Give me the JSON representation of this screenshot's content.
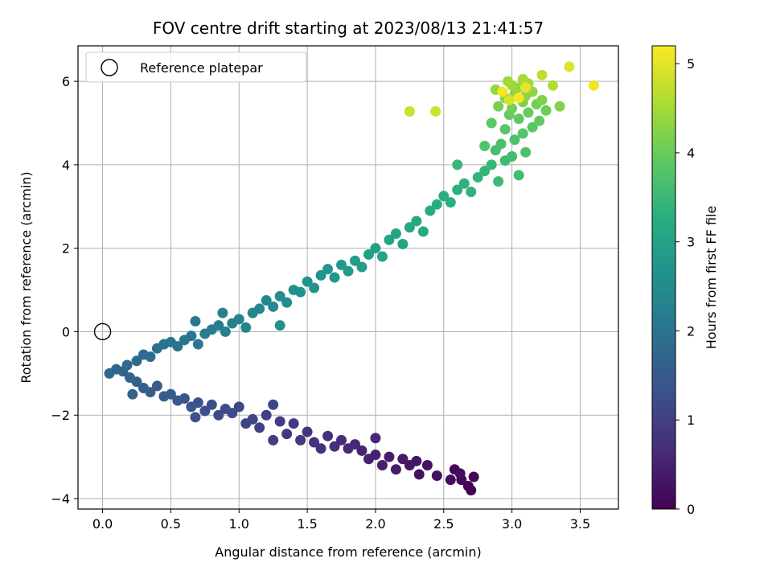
{
  "chart_data": {
    "type": "scatter",
    "title": "FOV centre drift starting at 2023/08/13 21:41:57",
    "xlabel": "Angular distance from reference (arcmin)",
    "ylabel": "Rotation from reference (arcmin)",
    "xlim": [
      -0.18,
      3.78
    ],
    "ylim": [
      -4.25,
      6.85
    ],
    "xticks": [
      0.0,
      0.5,
      1.0,
      1.5,
      2.0,
      2.5,
      3.0,
      3.5
    ],
    "xtick_labels": [
      "0.0",
      "0.5",
      "1.0",
      "1.5",
      "2.0",
      "2.5",
      "3.0",
      "3.5"
    ],
    "yticks": [
      -4,
      -2,
      0,
      2,
      4,
      6
    ],
    "ytick_labels": [
      "−4",
      "−2",
      "0",
      "2",
      "4",
      "6"
    ],
    "grid": true,
    "legend": {
      "position": "top-left",
      "entries": [
        "Reference platepar"
      ]
    },
    "colorbar": {
      "label": "Hours from first FF file",
      "colormap": "viridis",
      "range": [
        0,
        5.2
      ],
      "ticks": [
        0,
        1,
        2,
        3,
        4,
        5
      ],
      "tick_labels": [
        "0",
        "1",
        "2",
        "3",
        "4",
        "5"
      ]
    },
    "reference_point": {
      "x": 0.0,
      "y": 0.0,
      "style": "hollow circle"
    },
    "series": [
      {
        "color_by": "hours",
        "points": [
          {
            "x": 2.7,
            "y": -3.8,
            "h": 0.0
          },
          {
            "x": 2.68,
            "y": -3.7,
            "h": 0.03
          },
          {
            "x": 2.72,
            "y": -3.48,
            "h": 0.06
          },
          {
            "x": 2.63,
            "y": -3.55,
            "h": 0.09
          },
          {
            "x": 2.58,
            "y": -3.3,
            "h": 0.12
          },
          {
            "x": 2.55,
            "y": -3.55,
            "h": 0.15
          },
          {
            "x": 2.62,
            "y": -3.4,
            "h": 0.18
          },
          {
            "x": 2.45,
            "y": -3.45,
            "h": 0.21
          },
          {
            "x": 2.38,
            "y": -3.2,
            "h": 0.24
          },
          {
            "x": 2.32,
            "y": -3.42,
            "h": 0.27
          },
          {
            "x": 2.3,
            "y": -3.1,
            "h": 0.3
          },
          {
            "x": 2.25,
            "y": -3.2,
            "h": 0.33
          },
          {
            "x": 2.2,
            "y": -3.05,
            "h": 0.36
          },
          {
            "x": 2.15,
            "y": -3.3,
            "h": 0.39
          },
          {
            "x": 2.1,
            "y": -3.0,
            "h": 0.42
          },
          {
            "x": 2.05,
            "y": -3.2,
            "h": 0.45
          },
          {
            "x": 2.0,
            "y": -2.95,
            "h": 0.48
          },
          {
            "x": 1.95,
            "y": -3.05,
            "h": 0.51
          },
          {
            "x": 1.9,
            "y": -2.85,
            "h": 0.54
          },
          {
            "x": 2.0,
            "y": -2.55,
            "h": 0.57
          },
          {
            "x": 1.85,
            "y": -2.7,
            "h": 0.6
          },
          {
            "x": 1.8,
            "y": -2.8,
            "h": 0.63
          },
          {
            "x": 1.75,
            "y": -2.6,
            "h": 0.66
          },
          {
            "x": 1.7,
            "y": -2.75,
            "h": 0.69
          },
          {
            "x": 1.65,
            "y": -2.5,
            "h": 0.72
          },
          {
            "x": 1.6,
            "y": -2.8,
            "h": 0.75
          },
          {
            "x": 1.55,
            "y": -2.65,
            "h": 0.78
          },
          {
            "x": 1.5,
            "y": -2.4,
            "h": 0.81
          },
          {
            "x": 1.45,
            "y": -2.6,
            "h": 0.84
          },
          {
            "x": 1.4,
            "y": -2.2,
            "h": 0.87
          },
          {
            "x": 1.35,
            "y": -2.45,
            "h": 0.9
          },
          {
            "x": 1.3,
            "y": -2.15,
            "h": 0.93
          },
          {
            "x": 1.25,
            "y": -2.6,
            "h": 0.96
          },
          {
            "x": 1.2,
            "y": -2.0,
            "h": 0.99
          },
          {
            "x": 1.15,
            "y": -2.3,
            "h": 1.02
          },
          {
            "x": 1.1,
            "y": -2.1,
            "h": 1.05
          },
          {
            "x": 1.05,
            "y": -2.2,
            "h": 1.08
          },
          {
            "x": 1.25,
            "y": -1.75,
            "h": 1.11
          },
          {
            "x": 1.0,
            "y": -1.8,
            "h": 1.14
          },
          {
            "x": 0.95,
            "y": -1.95,
            "h": 1.17
          },
          {
            "x": 0.9,
            "y": -1.85,
            "h": 1.2
          },
          {
            "x": 0.85,
            "y": -2.0,
            "h": 1.23
          },
          {
            "x": 0.8,
            "y": -1.75,
            "h": 1.26
          },
          {
            "x": 0.75,
            "y": -1.9,
            "h": 1.29
          },
          {
            "x": 0.7,
            "y": -1.7,
            "h": 1.32
          },
          {
            "x": 0.68,
            "y": -2.05,
            "h": 1.35
          },
          {
            "x": 0.65,
            "y": -1.8,
            "h": 1.38
          },
          {
            "x": 0.6,
            "y": -1.6,
            "h": 1.41
          },
          {
            "x": 0.55,
            "y": -1.65,
            "h": 1.44
          },
          {
            "x": 0.5,
            "y": -1.5,
            "h": 1.47
          },
          {
            "x": 0.45,
            "y": -1.55,
            "h": 1.5
          },
          {
            "x": 0.4,
            "y": -1.3,
            "h": 1.53
          },
          {
            "x": 0.35,
            "y": -1.45,
            "h": 1.56
          },
          {
            "x": 0.3,
            "y": -1.35,
            "h": 1.59
          },
          {
            "x": 0.25,
            "y": -1.2,
            "h": 1.62
          },
          {
            "x": 0.22,
            "y": -1.5,
            "h": 1.65
          },
          {
            "x": 0.2,
            "y": -1.1,
            "h": 1.68
          },
          {
            "x": 0.15,
            "y": -0.95,
            "h": 1.71
          },
          {
            "x": 0.1,
            "y": -0.9,
            "h": 1.74
          },
          {
            "x": 0.05,
            "y": -1.0,
            "h": 1.77
          },
          {
            "x": 0.18,
            "y": -0.8,
            "h": 1.8
          },
          {
            "x": 0.25,
            "y": -0.7,
            "h": 1.83
          },
          {
            "x": 0.3,
            "y": -0.55,
            "h": 1.86
          },
          {
            "x": 0.35,
            "y": -0.6,
            "h": 1.89
          },
          {
            "x": 0.4,
            "y": -0.4,
            "h": 1.92
          },
          {
            "x": 0.45,
            "y": -0.3,
            "h": 1.95
          },
          {
            "x": 0.5,
            "y": -0.25,
            "h": 1.98
          },
          {
            "x": 0.55,
            "y": -0.35,
            "h": 2.0
          },
          {
            "x": 0.6,
            "y": -0.2,
            "h": 2.03
          },
          {
            "x": 0.65,
            "y": -0.1,
            "h": 2.06
          },
          {
            "x": 0.68,
            "y": 0.25,
            "h": 2.09
          },
          {
            "x": 0.7,
            "y": -0.3,
            "h": 2.12
          },
          {
            "x": 0.75,
            "y": -0.05,
            "h": 2.15
          },
          {
            "x": 0.8,
            "y": 0.05,
            "h": 2.18
          },
          {
            "x": 0.85,
            "y": 0.15,
            "h": 2.21
          },
          {
            "x": 0.9,
            "y": 0.0,
            "h": 2.24
          },
          {
            "x": 0.95,
            "y": 0.2,
            "h": 2.27
          },
          {
            "x": 0.88,
            "y": 0.45,
            "h": 2.3
          },
          {
            "x": 1.0,
            "y": 0.3,
            "h": 2.33
          },
          {
            "x": 1.05,
            "y": 0.1,
            "h": 2.36
          },
          {
            "x": 1.1,
            "y": 0.45,
            "h": 2.39
          },
          {
            "x": 1.15,
            "y": 0.55,
            "h": 2.42
          },
          {
            "x": 1.2,
            "y": 0.75,
            "h": 2.45
          },
          {
            "x": 1.25,
            "y": 0.6,
            "h": 2.48
          },
          {
            "x": 1.3,
            "y": 0.85,
            "h": 2.51
          },
          {
            "x": 1.35,
            "y": 0.7,
            "h": 2.54
          },
          {
            "x": 1.4,
            "y": 1.0,
            "h": 2.57
          },
          {
            "x": 1.3,
            "y": 0.15,
            "h": 2.6
          },
          {
            "x": 1.45,
            "y": 0.95,
            "h": 2.63
          },
          {
            "x": 1.5,
            "y": 1.2,
            "h": 2.66
          },
          {
            "x": 1.55,
            "y": 1.05,
            "h": 2.69
          },
          {
            "x": 1.6,
            "y": 1.35,
            "h": 2.72
          },
          {
            "x": 1.65,
            "y": 1.5,
            "h": 2.75
          },
          {
            "x": 1.7,
            "y": 1.3,
            "h": 2.78
          },
          {
            "x": 1.75,
            "y": 1.6,
            "h": 2.81
          },
          {
            "x": 1.8,
            "y": 1.45,
            "h": 2.84
          },
          {
            "x": 1.85,
            "y": 1.7,
            "h": 2.87
          },
          {
            "x": 1.9,
            "y": 1.55,
            "h": 2.9
          },
          {
            "x": 1.95,
            "y": 1.85,
            "h": 2.93
          },
          {
            "x": 2.0,
            "y": 2.0,
            "h": 2.96
          },
          {
            "x": 2.05,
            "y": 1.8,
            "h": 2.99
          },
          {
            "x": 2.1,
            "y": 2.2,
            "h": 3.02
          },
          {
            "x": 2.15,
            "y": 2.35,
            "h": 3.05
          },
          {
            "x": 2.2,
            "y": 2.1,
            "h": 3.08
          },
          {
            "x": 2.25,
            "y": 2.5,
            "h": 3.11
          },
          {
            "x": 2.3,
            "y": 2.65,
            "h": 3.14
          },
          {
            "x": 2.35,
            "y": 2.4,
            "h": 3.17
          },
          {
            "x": 2.4,
            "y": 2.9,
            "h": 3.2
          },
          {
            "x": 2.45,
            "y": 3.05,
            "h": 3.23
          },
          {
            "x": 2.5,
            "y": 3.25,
            "h": 3.26
          },
          {
            "x": 2.55,
            "y": 3.1,
            "h": 3.29
          },
          {
            "x": 2.6,
            "y": 3.4,
            "h": 3.32
          },
          {
            "x": 2.65,
            "y": 3.55,
            "h": 3.35
          },
          {
            "x": 2.7,
            "y": 3.35,
            "h": 3.38
          },
          {
            "x": 2.75,
            "y": 3.7,
            "h": 3.41
          },
          {
            "x": 2.8,
            "y": 3.85,
            "h": 3.44
          },
          {
            "x": 2.6,
            "y": 4.0,
            "h": 3.47
          },
          {
            "x": 2.85,
            "y": 4.0,
            "h": 3.5
          },
          {
            "x": 2.9,
            "y": 3.6,
            "h": 3.53
          },
          {
            "x": 2.95,
            "y": 4.1,
            "h": 3.56
          },
          {
            "x": 3.05,
            "y": 3.75,
            "h": 3.59
          },
          {
            "x": 3.0,
            "y": 4.2,
            "h": 3.62
          },
          {
            "x": 2.88,
            "y": 4.35,
            "h": 3.65
          },
          {
            "x": 3.1,
            "y": 4.3,
            "h": 3.68
          },
          {
            "x": 2.92,
            "y": 4.5,
            "h": 3.71
          },
          {
            "x": 3.02,
            "y": 4.6,
            "h": 3.74
          },
          {
            "x": 2.8,
            "y": 4.45,
            "h": 3.77
          },
          {
            "x": 3.08,
            "y": 4.75,
            "h": 3.8
          },
          {
            "x": 2.95,
            "y": 4.85,
            "h": 3.83
          },
          {
            "x": 3.15,
            "y": 4.9,
            "h": 3.86
          },
          {
            "x": 2.85,
            "y": 5.0,
            "h": 3.89
          },
          {
            "x": 3.05,
            "y": 5.1,
            "h": 3.92
          },
          {
            "x": 3.2,
            "y": 5.05,
            "h": 3.95
          },
          {
            "x": 2.98,
            "y": 5.2,
            "h": 3.98
          },
          {
            "x": 3.12,
            "y": 5.25,
            "h": 4.01
          },
          {
            "x": 3.25,
            "y": 5.3,
            "h": 4.04
          },
          {
            "x": 3.0,
            "y": 5.35,
            "h": 4.07
          },
          {
            "x": 3.18,
            "y": 5.45,
            "h": 4.1
          },
          {
            "x": 2.9,
            "y": 5.4,
            "h": 4.13
          },
          {
            "x": 3.08,
            "y": 5.5,
            "h": 4.16
          },
          {
            "x": 3.22,
            "y": 5.55,
            "h": 4.19
          },
          {
            "x": 3.35,
            "y": 5.4,
            "h": 4.22
          },
          {
            "x": 2.95,
            "y": 5.6,
            "h": 4.25
          },
          {
            "x": 3.1,
            "y": 5.65,
            "h": 4.28
          },
          {
            "x": 3.02,
            "y": 5.7,
            "h": 4.31
          },
          {
            "x": 3.15,
            "y": 5.75,
            "h": 4.34
          },
          {
            "x": 2.88,
            "y": 5.8,
            "h": 4.37
          },
          {
            "x": 3.05,
            "y": 5.85,
            "h": 4.4
          },
          {
            "x": 3.0,
            "y": 5.9,
            "h": 4.43
          },
          {
            "x": 3.12,
            "y": 5.95,
            "h": 4.46
          },
          {
            "x": 2.97,
            "y": 6.0,
            "h": 4.49
          },
          {
            "x": 3.08,
            "y": 6.05,
            "h": 4.52
          },
          {
            "x": 3.3,
            "y": 5.9,
            "h": 4.6
          },
          {
            "x": 3.22,
            "y": 6.15,
            "h": 4.7
          },
          {
            "x": 2.25,
            "y": 5.28,
            "h": 4.8
          },
          {
            "x": 2.44,
            "y": 5.28,
            "h": 4.85
          },
          {
            "x": 3.42,
            "y": 6.35,
            "h": 4.95
          },
          {
            "x": 3.6,
            "y": 5.9,
            "h": 5.1
          },
          {
            "x": 3.05,
            "y": 5.6,
            "h": 5.2
          },
          {
            "x": 2.93,
            "y": 5.75,
            "h": 5.15
          },
          {
            "x": 3.1,
            "y": 5.85,
            "h": 5.05
          },
          {
            "x": 2.98,
            "y": 5.55,
            "h": 4.9
          }
        ]
      }
    ]
  }
}
